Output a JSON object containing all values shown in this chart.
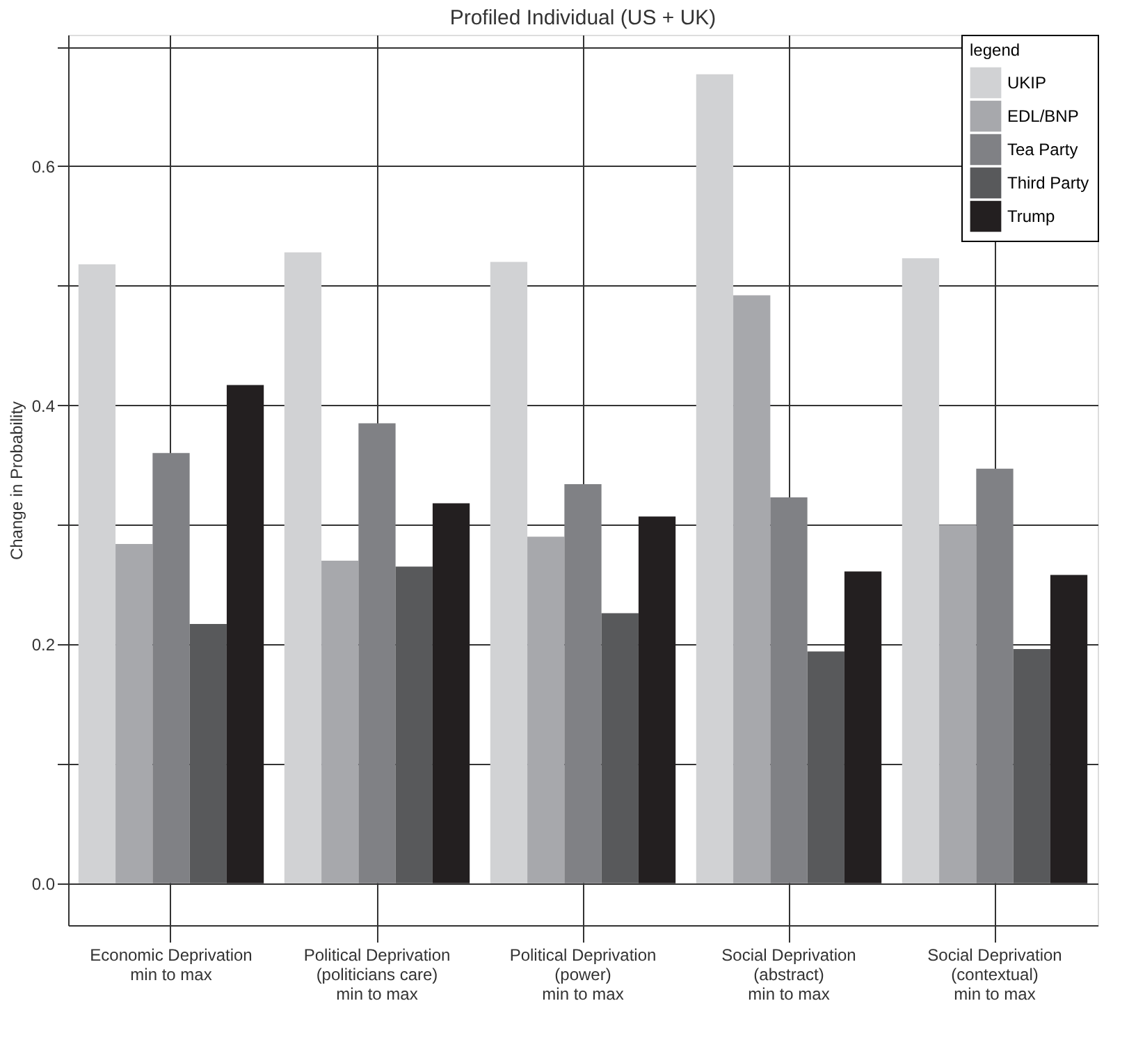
{
  "chart_data": {
    "type": "bar",
    "title": "Profiled Individual (US + UK)",
    "ylabel": "Change in Probability",
    "legend_title": "legend",
    "categories": [
      "Economic Deprivation\nmin to max",
      "Political Deprivation\n(politicians care)\nmin to max",
      "Political Deprivation\n(power)\nmin to max",
      "Social Deprivation\n(abstract)\nmin to max",
      "Social Deprivation\n(contextual)\nmin to max"
    ],
    "series": [
      {
        "name": "UKIP",
        "color": "#d1d2d4",
        "values": [
          0.518,
          0.528,
          0.52,
          0.677,
          0.523
        ]
      },
      {
        "name": "EDL/BNP",
        "color": "#a7a8ac",
        "values": [
          0.284,
          0.27,
          0.29,
          0.492,
          0.3
        ]
      },
      {
        "name": "Tea Party",
        "color": "#808185",
        "values": [
          0.36,
          0.385,
          0.334,
          0.323,
          0.347
        ]
      },
      {
        "name": "Third Party",
        "color": "#58595b",
        "values": [
          0.217,
          0.265,
          0.226,
          0.194,
          0.196
        ]
      },
      {
        "name": "Trump",
        "color": "#231f20",
        "values": [
          0.417,
          0.318,
          0.307,
          0.261,
          0.258
        ]
      }
    ],
    "ylim": [
      -0.035,
      0.71
    ],
    "yticks": [
      {
        "value": 0,
        "label": "0.0"
      },
      {
        "value": 0.1,
        "label": null
      },
      {
        "value": 0.2,
        "label": "0.2"
      },
      {
        "value": 0.3,
        "label": null
      },
      {
        "value": 0.4,
        "label": "0.4"
      },
      {
        "value": 0.5,
        "label": null
      },
      {
        "value": 0.6,
        "label": "0.6"
      },
      {
        "value": 0.7,
        "label": null
      }
    ],
    "grid": true,
    "legend": "top right"
  }
}
